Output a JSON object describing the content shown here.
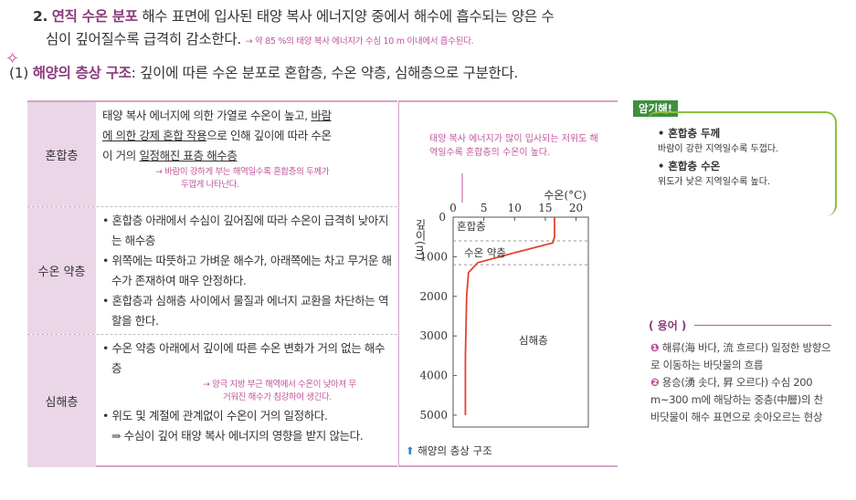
{
  "section2": {
    "number": "2.",
    "title": "연직 수온 분포",
    "text_line1": "해수 표면에 입사된 태양 복사 에너지양 중에서 해수에 흡수되는 양은 수",
    "text_line2": "심이 깊어질수록 급격히 감소한다.",
    "note": "→ 약 85 %의 태양 복사 에너지가 수심 10 m 이내에서 흡수된다."
  },
  "section1": {
    "star": "✧",
    "number": "(1)",
    "title": "해양의 층상 구조",
    "text": ": 깊이에 따른 수온 분포로 혼합층, 수온 약층, 심해층으로 구분한다."
  },
  "table": {
    "rows": [
      {
        "head": "혼합층",
        "line1a": "태양 복사 에너지에 의한 가열로 수온이 높고, ",
        "line1b": "바람",
        "line2a": "에 의한 강제 혼합 작용",
        "line2b": "으로 인해 깊이에 따라 수온",
        "line3a": "이 거의 ",
        "line3b": "일정해진 표층 해수층",
        "note_line1": "→ 바람이 강하게 부는 해역일수록 혼합층의 두께가",
        "note_line2": "두껍게 나타난다."
      },
      {
        "head": "수온 약층",
        "b1": "• 혼합층 아래에서 수심이 깊어짐에 따라 수온이 급격히 낮아지는 해수층",
        "b2": "• 위쪽에는 따뜻하고 가벼운 해수가, 아래쪽에는 차고 무거운 해수가 존재하여 매우 안정하다.",
        "b3": "• 혼합층과 심해층 사이에서 물질과 에너지 교환을 차단하는 역할을 한다."
      },
      {
        "head": "심해층",
        "b1": "• 수온 약층 아래에서 깊이에 따른 수온 변화가 거의 없는 해수층",
        "note_line1": "→ 양극 지방 부근 해역에서 수온이 낮아져 무",
        "note_line2": "거워진 해수가 침강하여 생긴다.",
        "b2": "• 위도 및 계절에 관계없이 수온이 거의 일정하다.",
        "b3": "⇒ 수심이 깊어 태양 복사 에너지의 영향을 받지 않는다."
      }
    ]
  },
  "chart_note": "태양 복사 에너지가 많이 입사되는 저위도 해역일수록 혼합층의 수온이 높다.",
  "caption": {
    "icon": "⬆",
    "text": "해양의 층상 구조"
  },
  "chart_data": {
    "type": "line",
    "xlabel": "수온(°C)",
    "ylabel": "깊이(m)",
    "x_ticks": [
      0,
      5,
      10,
      15,
      20
    ],
    "y_ticks": [
      1000,
      2000,
      3000,
      4000,
      5000
    ],
    "y_zero_label": "0",
    "xlim": [
      0,
      22
    ],
    "ylim": [
      0,
      5300
    ],
    "series": [
      {
        "x": [
          16.5,
          16.5,
          16.2,
          10,
          4,
          2.5,
          2.2,
          2.0,
          2.0
        ],
        "y": [
          0,
          500,
          650,
          900,
          1150,
          1400,
          2000,
          3500,
          5000
        ]
      }
    ],
    "zones": [
      "혼합층",
      "수온 약층",
      "심해층"
    ],
    "color": "#e0452e"
  },
  "memo": {
    "tag": "암기해!",
    "k1": "• 혼합층 두께",
    "s1": "바람이 강한 지역일수록 두껍다.",
    "k2": "• 혼합층 수온",
    "s2": "위도가 낮은 지역일수록 높다."
  },
  "terms": {
    "tag": "( 용어 )",
    "t1n": "❶",
    "t1": " 해류(海 바다, 流 흐르다) 일정한 방향으로 이동하는 바닷물의 흐름",
    "t2n": "❷",
    "t2": " 용승(湧 솟다, 昇 오르다) 수심 200 m~300 m에 해당하는 중층(中層)의 찬 바닷물이 해수 표면으로 솟아오르는 현상"
  }
}
